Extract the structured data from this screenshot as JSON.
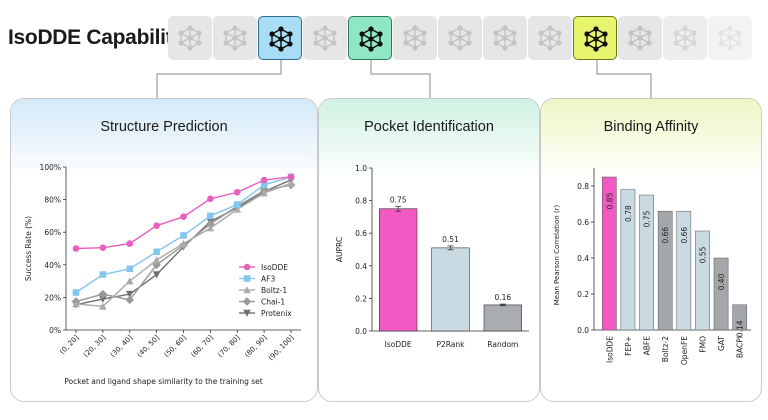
{
  "header": {
    "title": "IsoDDE Capabilities"
  },
  "tiles": {
    "count": 13,
    "highlighted": [
      2,
      4,
      9
    ],
    "icon": "molecule-graph-icon"
  },
  "panels": [
    {
      "title": "Structure Prediction",
      "accent": "#d3e9f8"
    },
    {
      "title": "Pocket Identification",
      "accent": "#d0f2e2"
    },
    {
      "title": "Binding Affinity",
      "accent": "#eef6c4"
    }
  ],
  "chart_data": [
    {
      "type": "line",
      "title": "Structure Prediction",
      "xlabel": "Pocket and ligand shape similarity to the training set",
      "ylabel": "Success Rate (%)",
      "categories": [
        "(0, 20]",
        "(20, 30]",
        "(30, 40]",
        "(40, 50]",
        "(50, 60]",
        "(60, 70]",
        "(70, 80]",
        "(80, 90]",
        "(90, 100]"
      ],
      "yticks": [
        "0%",
        "20%",
        "40%",
        "60%",
        "80%",
        "100%"
      ],
      "ylim": [
        0,
        100
      ],
      "legend": "center-right",
      "series": [
        {
          "name": "IsoDDE",
          "color": "#e85fbf",
          "marker": "circle",
          "values": [
            50,
            50.5,
            53,
            64,
            69.5,
            80.5,
            84.5,
            92,
            94
          ]
        },
        {
          "name": "AF3",
          "color": "#84c7ec",
          "marker": "square",
          "values": [
            23,
            34,
            37.5,
            48,
            58,
            70,
            77,
            89,
            94
          ]
        },
        {
          "name": "Boltz-1",
          "color": "#aaaaaa",
          "marker": "triangle-up",
          "values": [
            16,
            14.5,
            30,
            43,
            53,
            62.5,
            74,
            84,
            90
          ]
        },
        {
          "name": "Chai-1",
          "color": "#999999",
          "marker": "diamond",
          "values": [
            17.5,
            22,
            18.5,
            40,
            52,
            65,
            76,
            85.5,
            89
          ]
        },
        {
          "name": "Protenix",
          "color": "#6f6f6f",
          "marker": "triangle-down",
          "values": [
            15.5,
            19,
            22,
            34,
            51,
            66.5,
            75,
            85,
            92
          ]
        }
      ]
    },
    {
      "type": "bar",
      "title": "Pocket Identification",
      "ylabel": "AUPRC",
      "categories": [
        "IsoDDE",
        "P2Rank",
        "Random"
      ],
      "values": [
        0.75,
        0.51,
        0.16
      ],
      "labels": [
        "0.75",
        "0.51",
        "0.16"
      ],
      "errors": [
        0.015,
        0.012,
        0.005
      ],
      "colors": [
        "#f25ac3",
        "#c9dae3",
        "#a9adb1"
      ],
      "yticks": [
        "0.0",
        "0.2",
        "0.4",
        "0.6",
        "0.8",
        "1.0"
      ],
      "ylim": [
        0,
        1.0
      ]
    },
    {
      "type": "bar",
      "title": "Binding Affinity",
      "ylabel": "Mean Pearson Correlation (r)",
      "categories": [
        "IsoDDE",
        "FEP+",
        "ABFE",
        "Boltz-2",
        "OpenFE",
        "FMO",
        "GAT",
        "BACPI"
      ],
      "values": [
        0.85,
        0.78,
        0.75,
        0.66,
        0.66,
        0.55,
        0.4,
        0.14
      ],
      "labels": [
        "0.85",
        "0.78",
        "0.75",
        "0.66",
        "0.66",
        "0.55",
        "0.40",
        "0.14"
      ],
      "colors": [
        "#f25ac3",
        "#c9dae3",
        "#c9dae3",
        "#a3a7ab",
        "#c9dae3",
        "#c9dae3",
        "#a3a7ab",
        "#a3a7ab"
      ],
      "yticks": [
        "0.0",
        "0.2",
        "0.4",
        "0.6",
        "0.8"
      ],
      "ylim": [
        0,
        0.9
      ]
    }
  ]
}
